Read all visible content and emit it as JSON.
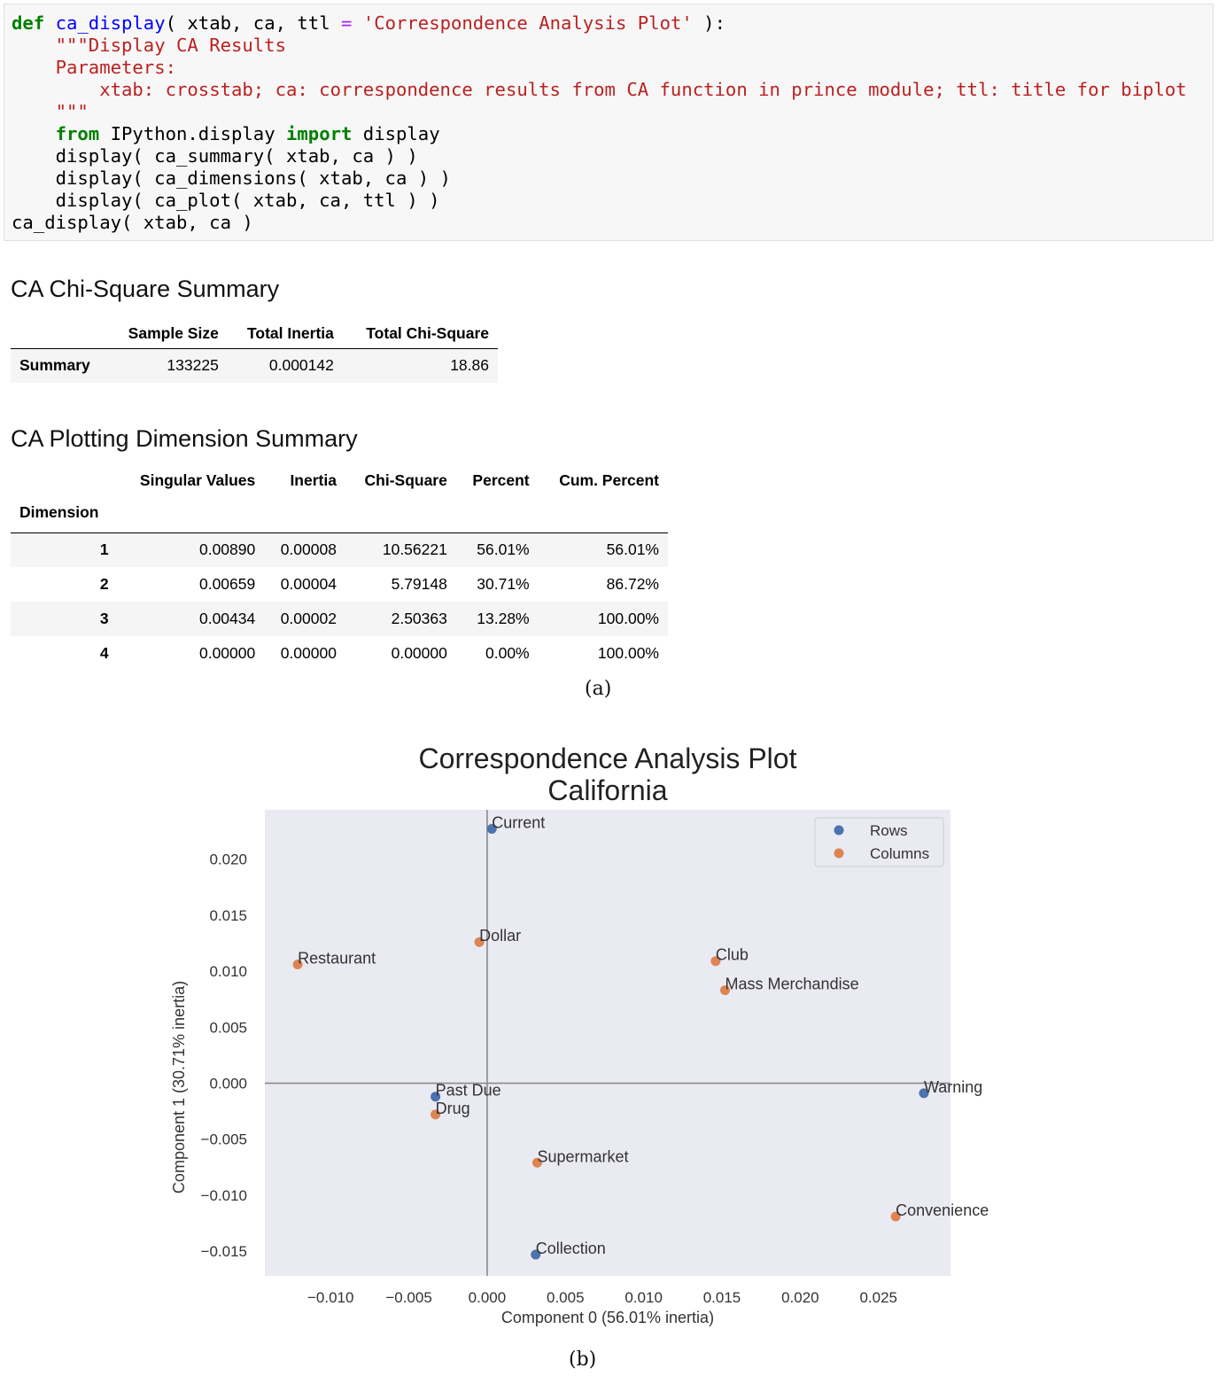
{
  "code": {
    "lines": [
      [
        [
          "kw",
          "def"
        ],
        [
          "t",
          " "
        ],
        [
          "fn",
          "ca_display"
        ],
        [
          "t",
          "( xtab, ca, ttl "
        ],
        [
          "op",
          "="
        ],
        [
          "t",
          " "
        ],
        [
          "st",
          "'Correspondence Analysis Plot'"
        ],
        [
          "t",
          " ):"
        ]
      ],
      [
        [
          "t",
          "    "
        ],
        [
          "st",
          "\"\"\"Display CA Results"
        ]
      ],
      [
        [
          "t",
          "    "
        ],
        [
          "st",
          "Parameters:"
        ]
      ],
      [
        [
          "t",
          "        "
        ],
        [
          "st",
          "xtab: crosstab; ca: correspondence results from CA function in prince module; ttl: title for biplot"
        ]
      ],
      [
        [
          "t",
          "    "
        ],
        [
          "st",
          "\"\"\""
        ]
      ],
      [
        [
          "t",
          "    "
        ],
        [
          "kw",
          "from"
        ],
        [
          "t",
          " IPython.display "
        ],
        [
          "kw",
          "import"
        ],
        [
          "t",
          " display"
        ]
      ],
      [
        [
          "t",
          "    display( ca_summary( xtab, ca ) )"
        ]
      ],
      [
        [
          "t",
          "    display( ca_dimensions( xtab, ca ) )"
        ]
      ],
      [
        [
          "t",
          "    display( ca_plot( xtab, ca, ttl ) )"
        ]
      ],
      [
        [
          "t",
          "ca_display( xtab, ca )"
        ]
      ]
    ]
  },
  "summary": {
    "title": "CA Chi-Square Summary",
    "headers": [
      "Sample Size",
      "Total Inertia",
      "Total Chi-Square"
    ],
    "row_label": "Summary",
    "values": [
      "133225",
      "0.000142",
      "18.86"
    ]
  },
  "dimensions": {
    "title": "CA Plotting Dimension Summary",
    "headers": [
      "Singular Values",
      "Inertia",
      "Chi-Square",
      "Percent",
      "Cum. Percent"
    ],
    "index_name": "Dimension",
    "rows": [
      {
        "label": "1",
        "values": [
          "0.00890",
          "0.00008",
          "10.56221",
          "56.01%",
          "56.01%"
        ]
      },
      {
        "label": "2",
        "values": [
          "0.00659",
          "0.00004",
          "5.79148",
          "30.71%",
          "86.72%"
        ]
      },
      {
        "label": "3",
        "values": [
          "0.00434",
          "0.00002",
          "2.50363",
          "13.28%",
          "100.00%"
        ]
      },
      {
        "label": "4",
        "values": [
          "0.00000",
          "0.00000",
          "0.00000",
          "0.00%",
          "100.00%"
        ]
      }
    ]
  },
  "captions": {
    "a": "(a)",
    "b": "(b)"
  },
  "colors": {
    "rows": "#4c72b0",
    "columns": "#dd8452",
    "plot_bg": "#eaeaf2"
  },
  "chart_data": {
    "type": "scatter",
    "title": "Correspondence Analysis Plot",
    "subtitle": "California",
    "xlabel": "Component 0 (56.01% inertia)",
    "ylabel": "Component 1 (30.71% inertia)",
    "xlim": [
      -0.0142,
      0.0296
    ],
    "ylim": [
      -0.0172,
      0.0244
    ],
    "xticks": [
      -0.01,
      -0.005,
      0.0,
      0.005,
      0.01,
      0.015,
      0.02,
      0.025
    ],
    "xtick_labels": [
      "−0.010",
      "−0.005",
      "0.000",
      "0.005",
      "0.010",
      "0.015",
      "0.020",
      "0.025"
    ],
    "yticks": [
      0.02,
      0.015,
      0.01,
      0.005,
      0.0,
      -0.005,
      -0.01,
      -0.015
    ],
    "ytick_labels": [
      "0.020",
      "0.015",
      "0.010",
      "0.005",
      "0.000",
      "−0.005",
      "−0.010",
      "−0.015"
    ],
    "grid": false,
    "legend_position": "top-right",
    "series": [
      {
        "name": "Rows",
        "points": [
          {
            "label": "Current",
            "x": 0.0003,
            "y": 0.0227
          },
          {
            "label": "Warning",
            "x": 0.0279,
            "y": -0.0009
          },
          {
            "label": "Past Due",
            "x": -0.0033,
            "y": -0.0012
          },
          {
            "label": "Collection",
            "x": 0.0031,
            "y": -0.0153
          }
        ]
      },
      {
        "name": "Columns",
        "points": [
          {
            "label": "Dollar",
            "x": -0.0005,
            "y": 0.0126
          },
          {
            "label": "Restaurant",
            "x": -0.0121,
            "y": 0.0106
          },
          {
            "label": "Club",
            "x": 0.0146,
            "y": 0.0109
          },
          {
            "label": "Mass Merchandise",
            "x": 0.0152,
            "y": 0.0083
          },
          {
            "label": "Drug",
            "x": -0.0033,
            "y": -0.0028
          },
          {
            "label": "Supermarket",
            "x": 0.0032,
            "y": -0.0071
          },
          {
            "label": "Convenience",
            "x": 0.0261,
            "y": -0.0119
          }
        ]
      }
    ]
  }
}
